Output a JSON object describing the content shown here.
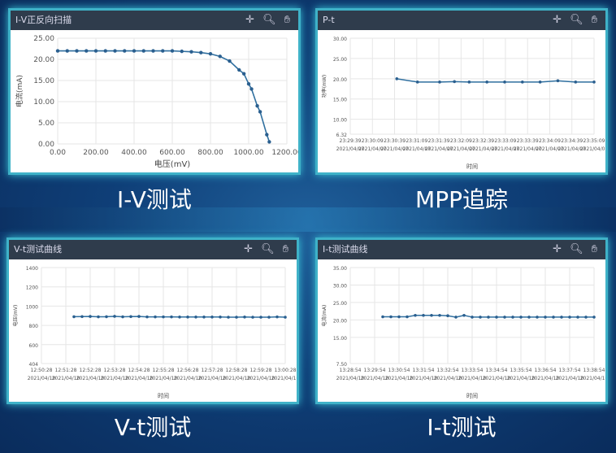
{
  "captions": [
    "I-V测试",
    "MPP追踪",
    "V-t测试",
    "I-t测试"
  ],
  "toolbar_icons": [
    "crosshair-icon",
    "zoom-icon",
    "pan-hand-icon"
  ],
  "colors": {
    "line": "#2f6f9f",
    "marker": "#2a5f8f",
    "grid": "#e6e6e6",
    "header": "#2f3c4c",
    "frame": "#3fb2c8"
  },
  "chart_data": [
    {
      "type": "line",
      "title": "I-V正反向扫描",
      "xlabel": "电压(mV)",
      "ylabel": "电流(mA)",
      "xlim": [
        0,
        1200
      ],
      "ylim": [
        0,
        25
      ],
      "xticks": [
        "0.00",
        "200.00",
        "400.00",
        "600.00",
        "800.00",
        "1000.00",
        "1200.00"
      ],
      "yticks": [
        "0.00",
        "5.00",
        "10.00",
        "15.00",
        "20.00",
        "25.00"
      ],
      "points": [
        [
          0,
          22
        ],
        [
          50,
          22
        ],
        [
          100,
          22
        ],
        [
          150,
          22
        ],
        [
          200,
          22
        ],
        [
          250,
          22
        ],
        [
          300,
          22
        ],
        [
          350,
          22
        ],
        [
          400,
          22
        ],
        [
          450,
          22
        ],
        [
          500,
          22
        ],
        [
          550,
          22
        ],
        [
          600,
          22
        ],
        [
          650,
          21.9
        ],
        [
          700,
          21.8
        ],
        [
          750,
          21.6
        ],
        [
          800,
          21.3
        ],
        [
          850,
          20.7
        ],
        [
          900,
          19.6
        ],
        [
          950,
          17.5
        ],
        [
          975,
          16.6
        ],
        [
          1000,
          14.2
        ],
        [
          1015,
          13.0
        ],
        [
          1045,
          9.0
        ],
        [
          1060,
          7.6
        ],
        [
          1095,
          2.2
        ],
        [
          1108,
          0.5
        ]
      ]
    },
    {
      "type": "line",
      "title": "P-t",
      "xlabel": "时间",
      "ylabel": "功率(mW)",
      "ylim": [
        6.32,
        30
      ],
      "yticks": [
        "6.32",
        "10.00",
        "15.00",
        "20.00",
        "25.00",
        "30.00"
      ],
      "ytickvals": [
        6.32,
        10,
        15,
        20,
        25,
        30
      ],
      "xticks": [
        "23:29:39",
        "23:30:09",
        "23:30:39",
        "23:31:09",
        "23:31:39",
        "23:32:09",
        "23:32:39",
        "23:33:09",
        "23:33:39",
        "23:34:09",
        "23:34:39",
        "23:35:09"
      ],
      "xdate": "2021/04/07",
      "points": [
        [
          "23:30:42",
          20.0
        ],
        [
          "23:31:10",
          19.2
        ],
        [
          "23:31:40",
          19.2
        ],
        [
          "23:32:00",
          19.3
        ],
        [
          "23:32:20",
          19.2
        ],
        [
          "23:32:44",
          19.2
        ],
        [
          "23:33:08",
          19.2
        ],
        [
          "23:33:32",
          19.2
        ],
        [
          "23:33:56",
          19.2
        ],
        [
          "23:34:20",
          19.5
        ],
        [
          "23:34:44",
          19.2
        ],
        [
          "23:35:09",
          19.2
        ]
      ]
    },
    {
      "type": "line",
      "title": "V-t测试曲线",
      "xlabel": "时间",
      "ylabel": "电压(mV)",
      "ylim": [
        404,
        1400
      ],
      "yticks": [
        "404",
        "600",
        "800",
        "1000",
        "1200",
        "1400"
      ],
      "ytickvals": [
        404,
        600,
        800,
        1000,
        1200,
        1400
      ],
      "xticks": [
        "12:50:28",
        "12:51:28",
        "12:52:28",
        "12:53:28",
        "12:54:28",
        "12:55:28",
        "12:56:28",
        "12:57:28",
        "12:58:28",
        "12:59:28",
        "13:00:28"
      ],
      "xdate": "2021/04/10",
      "points": [
        [
          "12:51:48",
          890
        ],
        [
          "12:52:08",
          891
        ],
        [
          "12:52:28",
          893
        ],
        [
          "12:52:48",
          889
        ],
        [
          "12:53:08",
          890
        ],
        [
          "12:53:28",
          894
        ],
        [
          "12:53:48",
          889
        ],
        [
          "12:54:08",
          891
        ],
        [
          "12:54:28",
          893
        ],
        [
          "12:54:48",
          888
        ],
        [
          "12:55:08",
          888
        ],
        [
          "12:55:28",
          888
        ],
        [
          "12:55:48",
          888
        ],
        [
          "12:56:08",
          887
        ],
        [
          "12:56:28",
          887
        ],
        [
          "12:56:48",
          887
        ],
        [
          "12:57:08",
          887
        ],
        [
          "12:57:28",
          887
        ],
        [
          "12:57:48",
          887
        ],
        [
          "12:58:08",
          885
        ],
        [
          "12:58:28",
          885
        ],
        [
          "12:58:48",
          887
        ],
        [
          "12:59:08",
          885
        ],
        [
          "12:59:28",
          885
        ],
        [
          "12:59:48",
          885
        ],
        [
          "13:00:08",
          888
        ],
        [
          "13:00:28",
          885
        ]
      ]
    },
    {
      "type": "line",
      "title": "I-t测试曲线",
      "xlabel": "时间",
      "ylabel": "电流(mA)",
      "ylim": [
        7.5,
        35
      ],
      "yticks": [
        "7.50",
        "15.00",
        "20.00",
        "25.00",
        "30.00",
        "35.00"
      ],
      "ytickvals": [
        7.5,
        15,
        20,
        25,
        30,
        35
      ],
      "xticks": [
        "13:28:54",
        "13:29:54",
        "13:30:54",
        "13:31:54",
        "13:32:54",
        "13:33:54",
        "13:34:54",
        "13:35:54",
        "13:36:54",
        "13:37:54",
        "13:38:54"
      ],
      "xdate": "2021/04/10",
      "points": [
        [
          "13:30:14",
          20.9
        ],
        [
          "13:30:34",
          20.9
        ],
        [
          "13:30:54",
          20.9
        ],
        [
          "13:31:14",
          20.9
        ],
        [
          "13:31:34",
          21.3
        ],
        [
          "13:31:54",
          21.3
        ],
        [
          "13:32:14",
          21.3
        ],
        [
          "13:32:34",
          21.3
        ],
        [
          "13:32:54",
          21.2
        ],
        [
          "13:33:14",
          20.8
        ],
        [
          "13:33:34",
          21.3
        ],
        [
          "13:33:54",
          20.8
        ],
        [
          "13:34:14",
          20.8
        ],
        [
          "13:34:34",
          20.8
        ],
        [
          "13:34:54",
          20.8
        ],
        [
          "13:35:14",
          20.8
        ],
        [
          "13:35:34",
          20.8
        ],
        [
          "13:35:54",
          20.8
        ],
        [
          "13:36:14",
          20.8
        ],
        [
          "13:36:34",
          20.8
        ],
        [
          "13:36:54",
          20.8
        ],
        [
          "13:37:14",
          20.8
        ],
        [
          "13:37:34",
          20.8
        ],
        [
          "13:37:54",
          20.8
        ],
        [
          "13:38:14",
          20.8
        ],
        [
          "13:38:34",
          20.8
        ],
        [
          "13:38:54",
          20.8
        ]
      ]
    }
  ]
}
